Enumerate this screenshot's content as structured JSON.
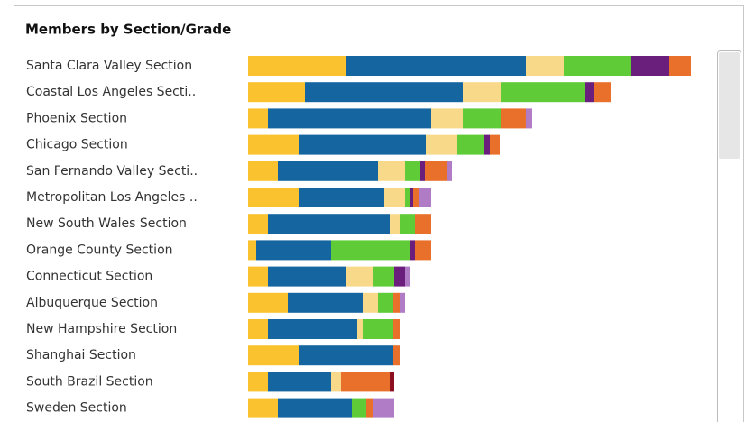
{
  "chart_data": {
    "type": "stacked-bar-horizontal",
    "title": "Members by Section/Grade",
    "categories": [
      "Santa Clara Valley Section",
      "Coastal Los Angeles Secti..",
      "Phoenix Section",
      "Chicago Section",
      "San Fernando Valley Secti..",
      "Metropolitan Los Angeles ..",
      "New South Wales Section",
      "Orange County Section",
      "Connecticut Section",
      "Albuquerque Section",
      "New Hampshire Section",
      "Shanghai Section",
      "South Brazil Section",
      "Sweden Section"
    ],
    "xlim": [
      0,
      500
    ],
    "series": [
      {
        "color": "#f9c22e",
        "values": [
          109,
          63,
          22,
          57,
          33,
          57,
          22,
          9,
          22,
          44,
          22,
          57,
          22,
          33
        ]
      },
      {
        "color": "#1565a0",
        "values": [
          199,
          175,
          181,
          140,
          111,
          94,
          135,
          83,
          87,
          83,
          99,
          104,
          70,
          82
        ]
      },
      {
        "color": "#f8d98a",
        "values": [
          42,
          42,
          35,
          35,
          30,
          23,
          11,
          0,
          29,
          17,
          6,
          0,
          11,
          0
        ]
      },
      {
        "color": "#5ecb37",
        "values": [
          75,
          93,
          42,
          30,
          17,
          5,
          17,
          87,
          24,
          17,
          34,
          0,
          0,
          16
        ]
      },
      {
        "color": "#6b1f7c",
        "values": [
          42,
          11,
          0,
          6,
          5,
          4,
          0,
          6,
          12,
          0,
          0,
          0,
          0,
          0
        ]
      },
      {
        "color": "#e8702a",
        "values": [
          24,
          18,
          28,
          11,
          24,
          7,
          18,
          18,
          0,
          7,
          7,
          7,
          54,
          7
        ]
      },
      {
        "color": "#b07cc6",
        "values": [
          0,
          0,
          7,
          0,
          6,
          13,
          0,
          0,
          5,
          6,
          0,
          0,
          0,
          24
        ]
      },
      {
        "color": "#8b0f1f",
        "values": [
          0,
          0,
          0,
          0,
          0,
          0,
          0,
          0,
          0,
          0,
          0,
          0,
          5,
          0
        ]
      }
    ]
  }
}
